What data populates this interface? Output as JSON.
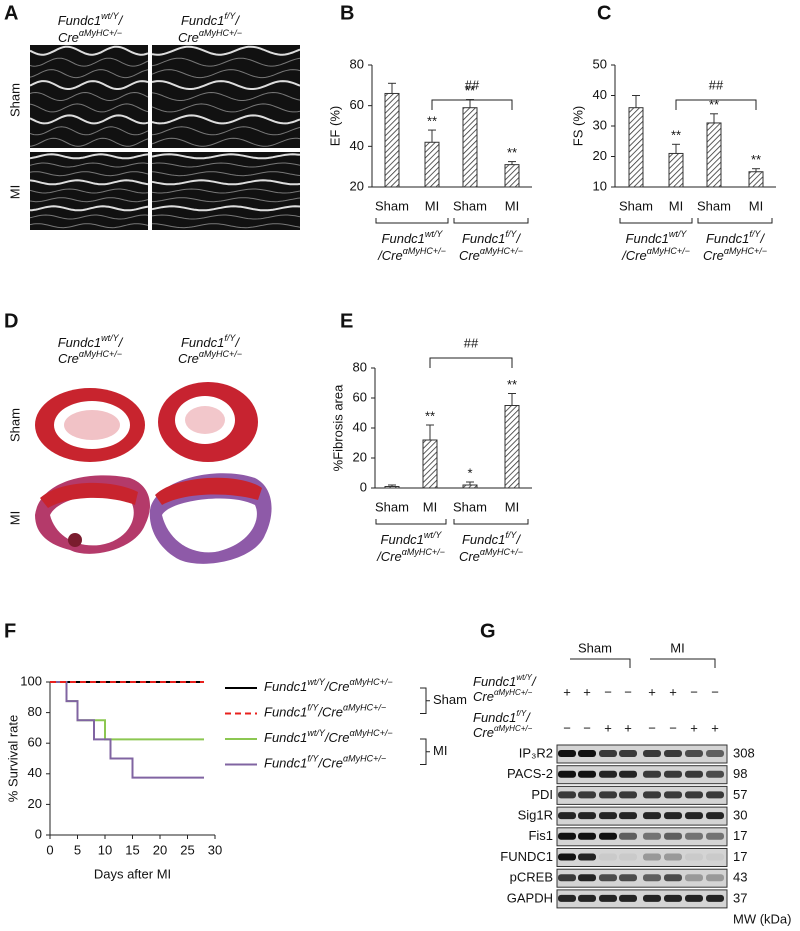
{
  "panel_a": {
    "label": "A",
    "columns": [
      [
        [
          "Fundc1",
          "wt/Y",
          "/"
        ],
        [
          "Cre",
          "αMyHC+/−"
        ]
      ],
      [
        [
          "Fundc1",
          "f/Y",
          "/"
        ],
        [
          "Cre",
          "αMyHC+/−"
        ]
      ]
    ],
    "rows": [
      "Sham",
      "MI"
    ]
  },
  "chart_data": [
    {
      "type": "bar",
      "panel_label": "B",
      "ylabel": "EF (%)",
      "categories": [
        "Sham",
        "MI",
        "Sham",
        "MI"
      ],
      "values": [
        66,
        42,
        59,
        31
      ],
      "errors": [
        5,
        6,
        4,
        1.5
      ],
      "annotations": [
        null,
        "**",
        "**",
        "**"
      ],
      "comparison_label": "##",
      "groups": [
        [
          [
            "Fundc1",
            "wt/Y"
          ],
          [
            "/Cre",
            "αMyHC+/−"
          ]
        ],
        [
          [
            "Fundc1",
            "f/Y",
            "/"
          ],
          [
            "Cre",
            "αMyHC+/−"
          ]
        ]
      ],
      "color": "#333333",
      "ylim": [
        20,
        80
      ],
      "yticks": [
        20,
        40,
        60,
        80
      ]
    },
    {
      "type": "bar",
      "panel_label": "C",
      "ylabel": "FS (%)",
      "categories": [
        "Sham",
        "MI",
        "Sham",
        "MI"
      ],
      "values": [
        36,
        21,
        31,
        15
      ],
      "errors": [
        4,
        3,
        3,
        1
      ],
      "annotations": [
        null,
        "**",
        "**",
        "**"
      ],
      "comparison_label": "##",
      "groups": [
        [
          [
            "Fundc1",
            "wt/Y"
          ],
          [
            "/Cre",
            "αMyHC+/−"
          ]
        ],
        [
          [
            "Fundc1",
            "f/Y",
            "/"
          ],
          [
            "Cre",
            "αMyHC+/−"
          ]
        ]
      ],
      "color": "#333333",
      "ylim": [
        10,
        50
      ],
      "yticks": [
        10,
        20,
        30,
        40,
        50
      ]
    },
    {
      "type": "bar",
      "panel_label": "E",
      "ylabel": "%Fibrosis area",
      "categories": [
        "Sham",
        "MI",
        "Sham",
        "MI"
      ],
      "values": [
        1,
        32,
        2,
        55
      ],
      "errors": [
        1,
        10,
        2,
        8
      ],
      "annotations": [
        null,
        "**",
        "*",
        "**"
      ],
      "comparison_label": "##",
      "groups": [
        [
          [
            "Fundc1",
            "wt/Y"
          ],
          [
            "/Cre",
            "αMyHC+/−"
          ]
        ],
        [
          [
            "Fundc1",
            "f/Y",
            "/"
          ],
          [
            "Cre",
            "αMyHC+/−"
          ]
        ]
      ],
      "color": "#333333",
      "ylim": [
        0,
        80
      ],
      "yticks": [
        0,
        20,
        40,
        60,
        80
      ]
    },
    {
      "type": "line",
      "panel_label": "F",
      "xlabel": "Days after MI",
      "ylabel": "% Survival rate",
      "series": [
        {
          "name": [
            "Fundc1",
            "wt/Y",
            "/Cre",
            "αMyHC+/−"
          ],
          "color": "#000000",
          "dashed": false,
          "x": [
            0,
            28
          ],
          "values": [
            100,
            100
          ]
        },
        {
          "name": [
            "Fundc1",
            "f/Y",
            "/Cre",
            "αMyHC+/−"
          ],
          "color": "#e8201c",
          "dashed": true,
          "x": [
            0,
            28
          ],
          "values": [
            100,
            100
          ]
        },
        {
          "name": [
            "Fundc1",
            "wt/Y",
            "/Cre",
            "αMyHC+/−"
          ],
          "color": "#8cc751",
          "dashed": false,
          "x": [
            0,
            3,
            3,
            5,
            5,
            10,
            10,
            28
          ],
          "values": [
            100,
            100,
            87.5,
            87.5,
            75,
            75,
            62.5,
            62.5
          ]
        },
        {
          "name": [
            "Fundc1",
            "f/Y",
            "/Cre",
            "αMyHC+/−"
          ],
          "color": "#8064a2",
          "dashed": false,
          "x": [
            0,
            3,
            3,
            5,
            5,
            8,
            8,
            11,
            11,
            15,
            15,
            28
          ],
          "values": [
            100,
            100,
            87.5,
            87.5,
            75,
            75,
            62.5,
            62.5,
            50,
            50,
            37.5,
            37.5
          ]
        }
      ],
      "legend_groups": [
        "Sham",
        "MI"
      ],
      "xlim": [
        0,
        30
      ],
      "xticks": [
        0,
        5,
        10,
        15,
        20,
        25,
        30
      ],
      "ylim": [
        0,
        100
      ],
      "yticks": [
        0,
        20,
        40,
        60,
        80,
        100
      ]
    }
  ],
  "panel_d": {
    "label": "D",
    "columns": [
      [
        [
          "Fundc1",
          "wt/Y",
          "/"
        ],
        [
          "Cre",
          "αMyHC+/−"
        ]
      ],
      [
        [
          "Fundc1",
          "f/Y",
          "/"
        ],
        [
          "Cre",
          "αMyHC+/−"
        ]
      ]
    ],
    "rows": [
      "Sham",
      "MI"
    ]
  },
  "panel_g": {
    "label": "G",
    "groups": [
      "Sham",
      "MI"
    ],
    "genotypes": [
      {
        "label": [
          [
            "Fundc1",
            "wt/Y",
            "/"
          ],
          [
            "Cre",
            "αMyHC+/−"
          ]
        ],
        "lanes": [
          "+",
          "+",
          "−",
          "−",
          "+",
          "+",
          "−",
          "−"
        ]
      },
      {
        "label": [
          [
            "Fundc1",
            "f/Y",
            "/"
          ],
          [
            "Cre",
            "αMyHC+/−"
          ]
        ],
        "lanes": [
          "−",
          "−",
          "+",
          "+",
          "−",
          "−",
          "+",
          "+"
        ]
      }
    ],
    "blots": [
      {
        "name": "IP₃R2",
        "mw": 308
      },
      {
        "name": "PACS-2",
        "mw": 98
      },
      {
        "name": "PDI",
        "mw": 57
      },
      {
        "name": "Sig1R",
        "mw": 30
      },
      {
        "name": "Fis1",
        "mw": 17
      },
      {
        "name": "FUNDC1",
        "mw": 17
      },
      {
        "name": "pCREB",
        "mw": 43
      },
      {
        "name": "GAPDH",
        "mw": 37
      }
    ],
    "mw_label": "MW (kDa)"
  }
}
